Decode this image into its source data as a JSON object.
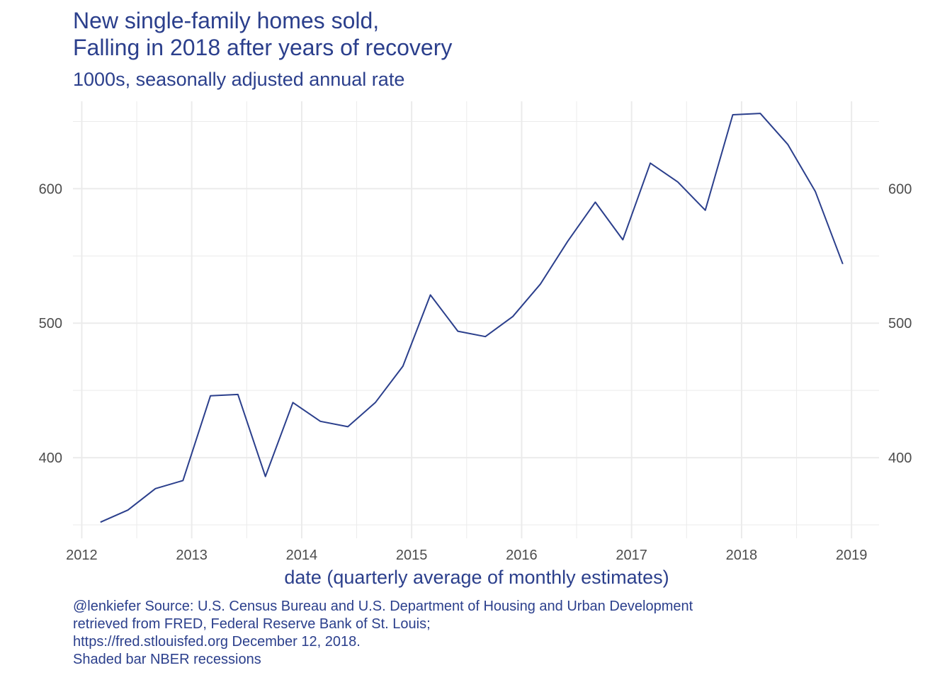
{
  "title_lines": [
    "New single-family homes sold,",
    "Falling in 2018 after years of recovery"
  ],
  "subtitle": "1000s, seasonally adjusted annual rate",
  "caption_lines": [
    "@lenkiefer Source: U.S. Census Bureau and U.S. Department of Housing and Urban Development",
    "retrieved from FRED, Federal Reserve Bank of St. Louis;",
    "https://fred.stlouisfed.org December 12, 2018.",
    "Shaded bar NBER recessions"
  ],
  "chart_data": {
    "type": "line",
    "title": "New single-family homes sold,\nFalling in 2018 after years of recovery",
    "subtitle": "1000s, seasonally adjusted annual rate",
    "xlabel": "date (quarterly average of monthly estimates)",
    "ylabel": "",
    "xlim": [
      2011.92,
      2019.25
    ],
    "ylim": [
      340,
      665
    ],
    "x_ticks": [
      2012,
      2013,
      2014,
      2015,
      2016,
      2017,
      2018,
      2019
    ],
    "x_tick_labels": [
      "2012",
      "2013",
      "2014",
      "2015",
      "2016",
      "2017",
      "2018",
      "2019"
    ],
    "y_ticks": [
      400,
      500,
      600
    ],
    "y_tick_labels": [
      "400",
      "500",
      "600"
    ],
    "y_axis_duplicated_right": true,
    "grid": true,
    "line_color": "#2b3f8c",
    "x": [
      "2012-Q1",
      "2012-Q2",
      "2012-Q3",
      "2012-Q4",
      "2013-Q1",
      "2013-Q2",
      "2013-Q3",
      "2013-Q4",
      "2014-Q1",
      "2014-Q2",
      "2014-Q3",
      "2014-Q4",
      "2015-Q1",
      "2015-Q2",
      "2015-Q3",
      "2015-Q4",
      "2016-Q1",
      "2016-Q2",
      "2016-Q3",
      "2016-Q4",
      "2017-Q1",
      "2017-Q2",
      "2017-Q3",
      "2017-Q4",
      "2018-Q1",
      "2018-Q2",
      "2018-Q3",
      "2018-Q4"
    ],
    "x_decimal": [
      2012.17,
      2012.42,
      2012.67,
      2012.92,
      2013.17,
      2013.42,
      2013.67,
      2013.92,
      2014.17,
      2014.42,
      2014.67,
      2014.92,
      2015.17,
      2015.42,
      2015.67,
      2015.92,
      2016.17,
      2016.42,
      2016.67,
      2016.92,
      2017.17,
      2017.42,
      2017.67,
      2017.92,
      2018.17,
      2018.42,
      2018.67,
      2018.92
    ],
    "values": [
      352,
      361,
      377,
      383,
      446,
      447,
      386,
      441,
      427,
      423,
      441,
      468,
      521,
      494,
      490,
      505,
      529,
      561,
      590,
      562,
      619,
      605,
      584,
      655,
      656,
      633,
      598,
      544
    ]
  }
}
